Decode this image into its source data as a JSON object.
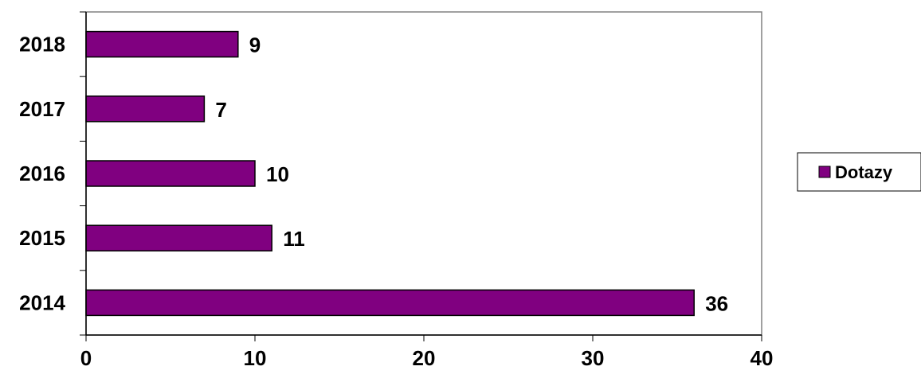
{
  "chart_data": {
    "type": "bar",
    "orientation": "horizontal",
    "categories": [
      "2014",
      "2015",
      "2016",
      "2017",
      "2018"
    ],
    "series": [
      {
        "name": "Dotazy",
        "values": [
          36,
          11,
          10,
          7,
          9
        ],
        "color": "#800080"
      }
    ],
    "title": "",
    "xlabel": "",
    "ylabel": "",
    "xlim": [
      0,
      40
    ],
    "x_ticks": [
      0,
      10,
      20,
      30,
      40
    ],
    "grid": false,
    "legend": "right",
    "data_labels": true
  }
}
